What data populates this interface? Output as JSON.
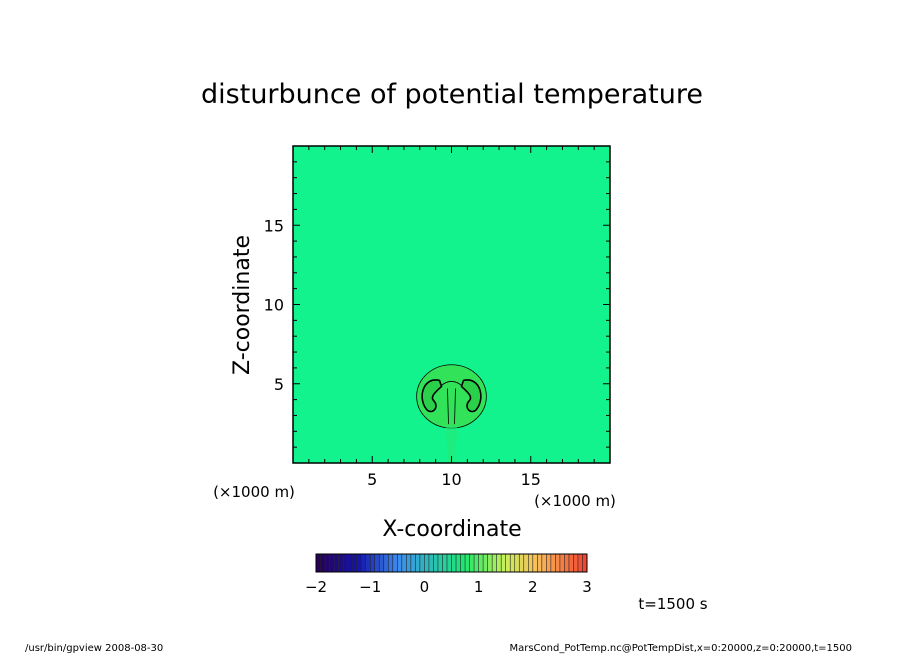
{
  "chart_data": {
    "type": "heatmap",
    "title": "disturbunce of potential temperature",
    "xlabel": "X-coordinate",
    "ylabel": "Z-coordinate",
    "x_scale_note_left": "(×1000 m)",
    "x_scale_note_right": "(×1000 m)",
    "xlim": [
      0,
      20
    ],
    "ylim": [
      0,
      20
    ],
    "x_ticks": [
      5,
      10,
      15
    ],
    "y_ticks": [
      5,
      10,
      15
    ],
    "background_value": 0,
    "feature": {
      "description_values": "warm rising thermal bubble",
      "center_x": 10,
      "center_z": 4.2,
      "radius_x": 2.2,
      "radius_z": 2.0,
      "max_value": 0.6
    },
    "colorbar": {
      "min": -2,
      "max": 3,
      "tick_labels": [
        "−2",
        "−1",
        "0",
        "1",
        "2",
        "3"
      ],
      "tick_values": [
        -2,
        -1,
        0,
        1,
        2,
        3
      ]
    },
    "time_label": "t=1500 s"
  },
  "footer": {
    "left": "/usr/bin/gpview   2008-08-30",
    "right": "MarsCond_PotTemp.nc@PotTempDist,x=0:20000,z=0:20000,t=1500"
  },
  "colors": {
    "background_field": "#13f38d",
    "bubble_fill": "#32e35a",
    "bubble_inner": "#2bd04a"
  }
}
